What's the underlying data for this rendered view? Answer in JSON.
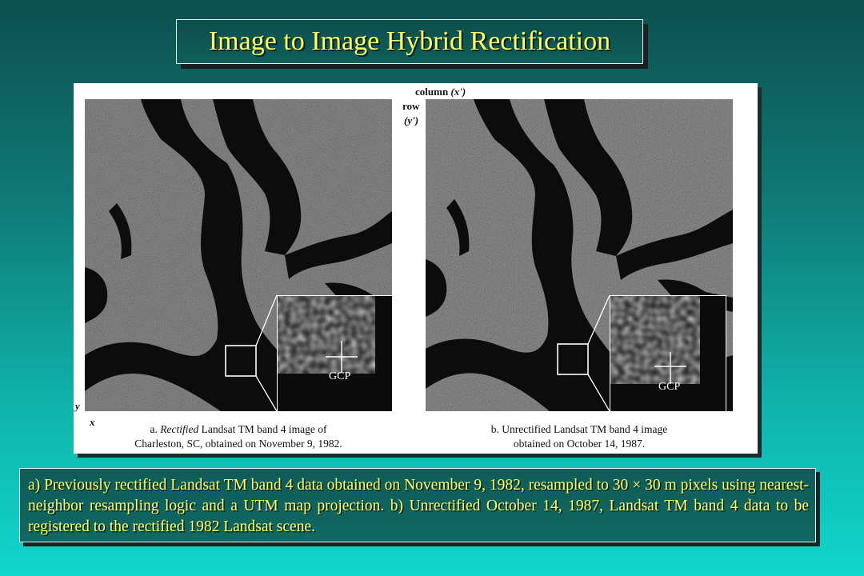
{
  "title": "Image to Image Hybrid Rectification",
  "figure": {
    "axis_column_label": "column",
    "axis_column_var": "(x')",
    "axis_row_label": "row",
    "axis_row_var": "(y')",
    "axis_y": "y",
    "axis_x": "x",
    "panel_a": {
      "caption_prefix": "a.",
      "caption_emphasis": "Rectified",
      "caption_line1_rest": "Landsat TM band 4 image of",
      "caption_line2": "Charleston, SC, obtained on November 9, 1982.",
      "gcp_label": "GCP"
    },
    "panel_b": {
      "caption_line1": "b. Unrectified Landsat TM band 4 image",
      "caption_line2": "obtained on October 14, 1987.",
      "gcp_label": "GCP"
    }
  },
  "description": "a) Previously rectified Landsat TM band 4 data obtained on November 9, 1982, resampled to 30 × 30 m pixels using nearest-neighbor resampling logic and a UTM map projection. b) Unrectified October 14, 1987, Landsat TM band 4 data to be registered to the rectified 1982 Landsat scene.",
  "colors": {
    "title_text": "#ffff66",
    "background_top": "#0d4f4f",
    "background_bottom": "#11d6cc",
    "water": "#0b0b0b",
    "land": "#8a8a8a"
  }
}
